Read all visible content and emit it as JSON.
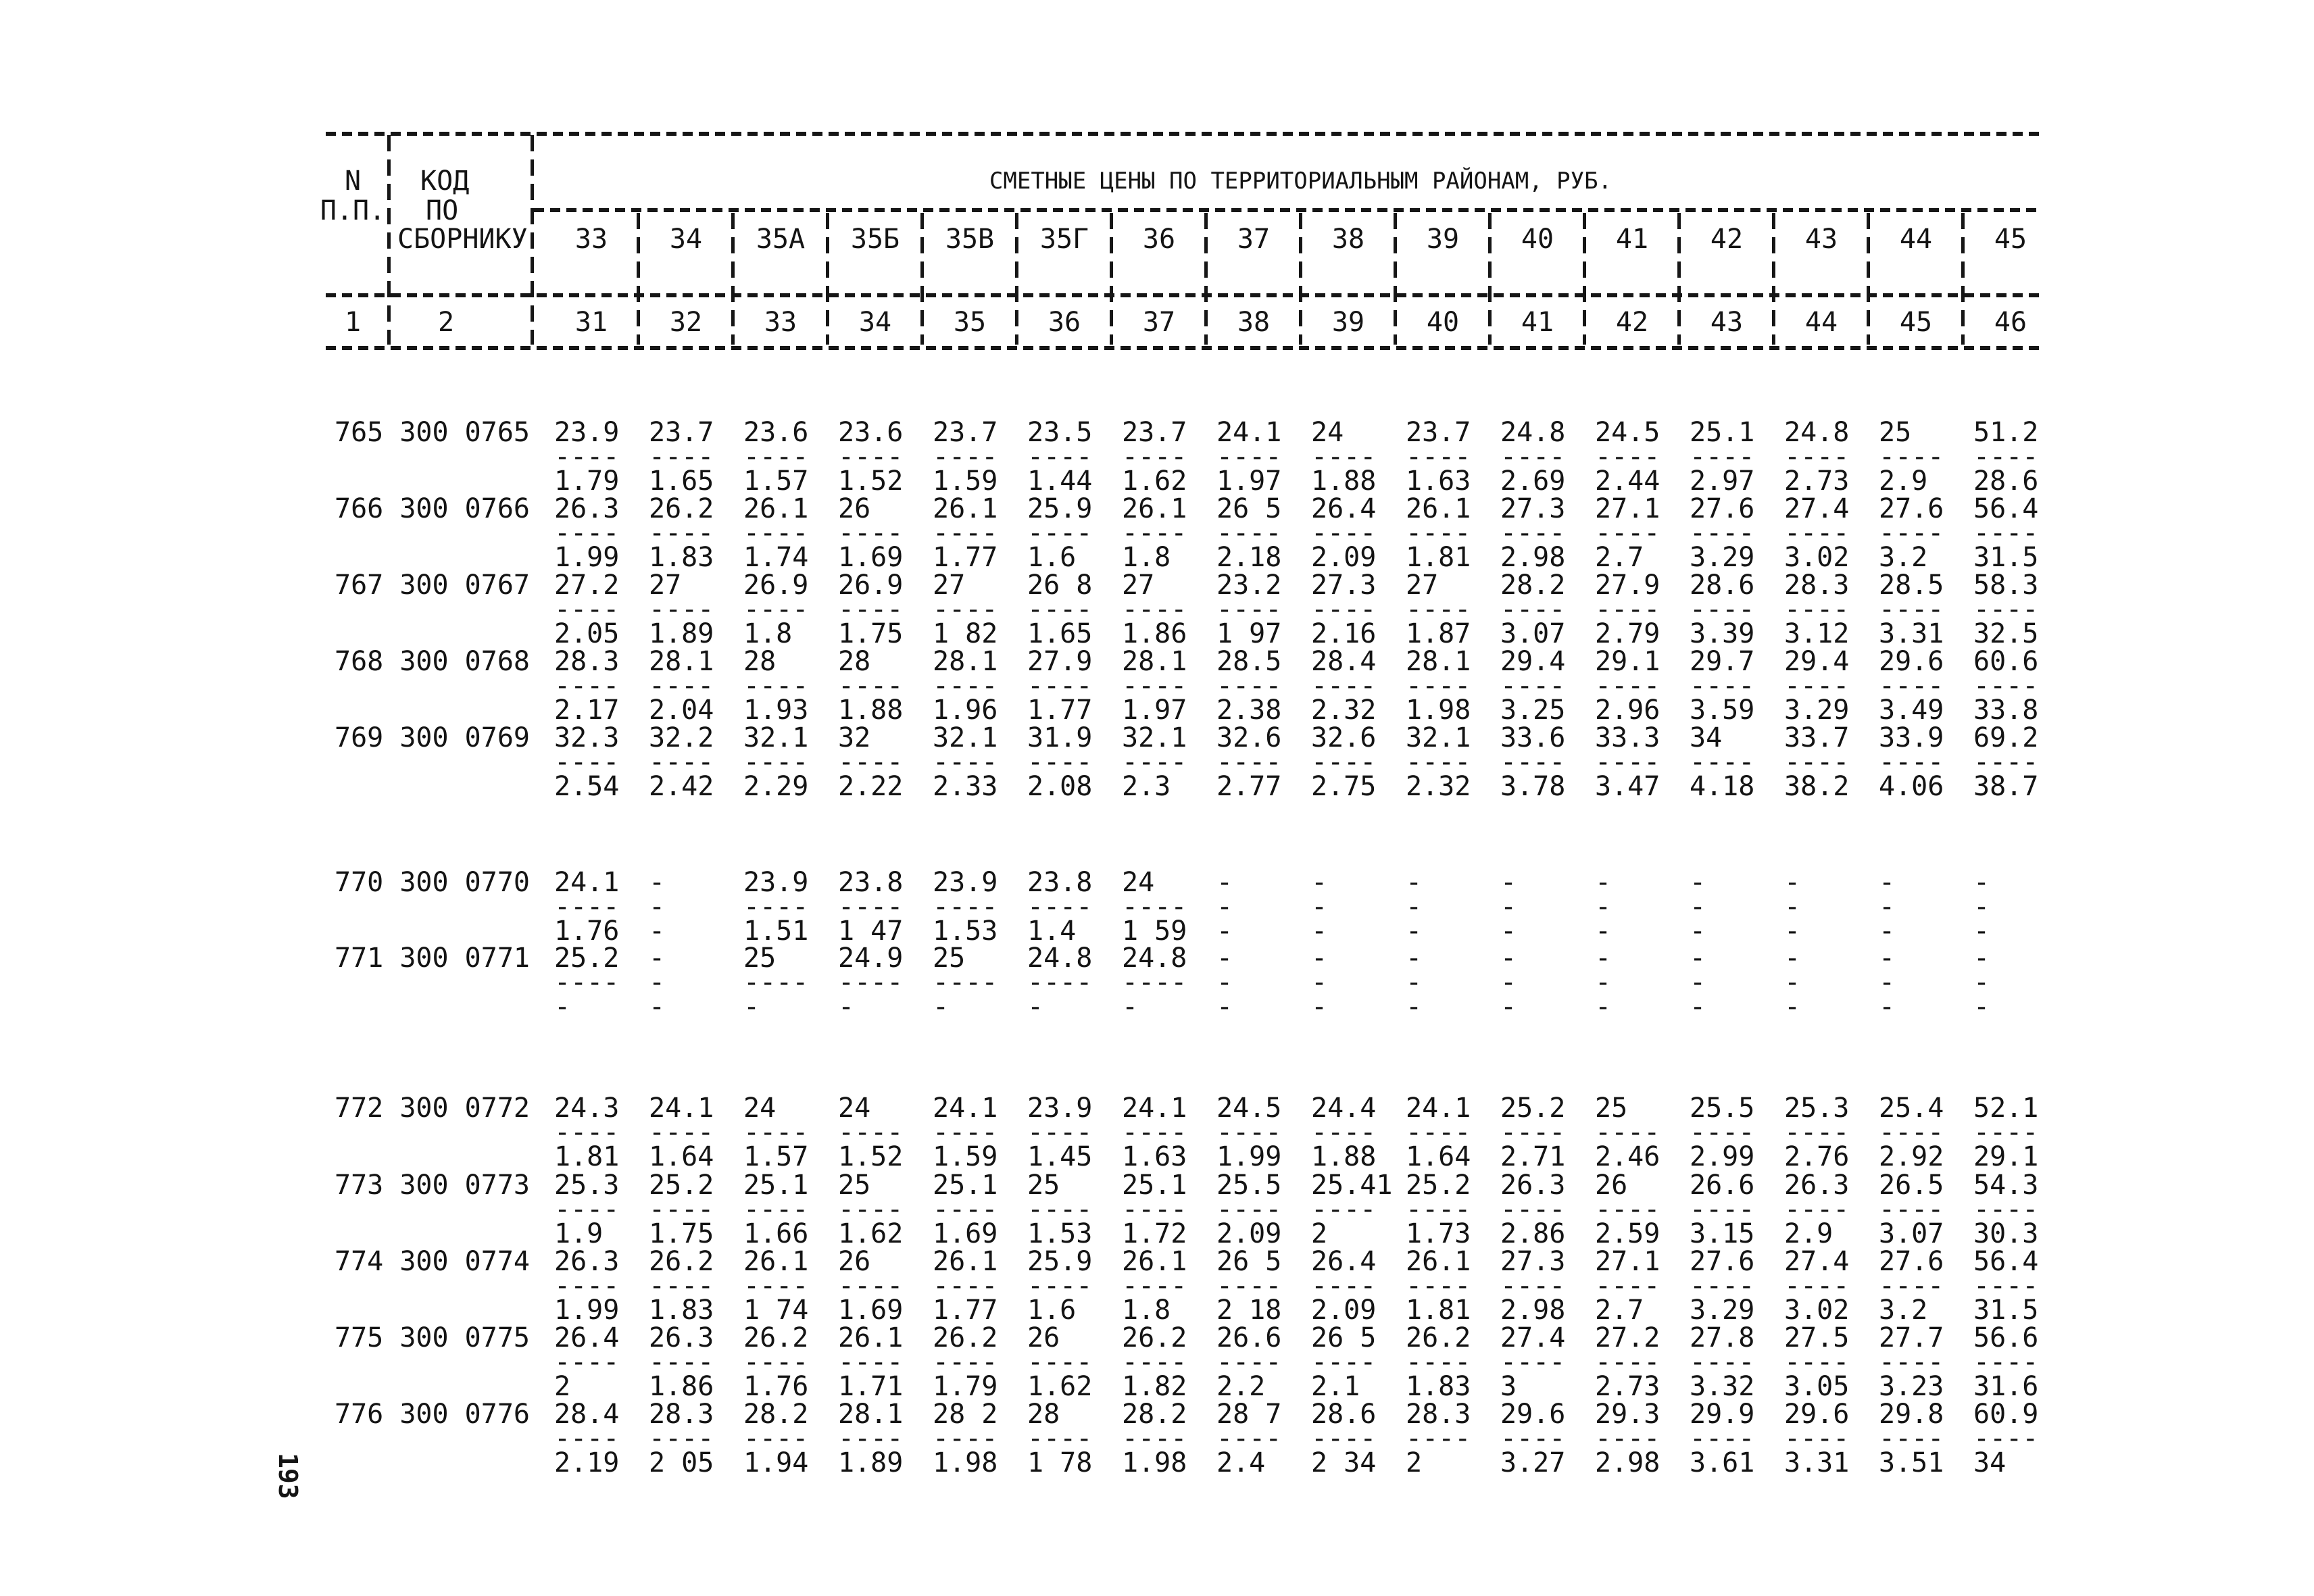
{
  "page_number": "193",
  "header": {
    "row_no_line1": "N",
    "row_no_line2": "П.П.",
    "code_line1": "КОД",
    "code_line2": "ПО",
    "code_line3": "СБОРНИКУ",
    "title": "СМЕТНЫЕ ЦЕНЫ ПО ТЕРРИТОРИАЛЬНЫМ РАЙОНАМ, РУБ.",
    "index_row_no": "1",
    "index_code": "2",
    "district_codes": [
      "33",
      "34",
      "35А",
      "35Б",
      "35В",
      "35Г",
      "36",
      "37",
      "38",
      "39",
      "40",
      "41",
      "42",
      "43",
      "44",
      "45"
    ],
    "column_numbers": [
      "31",
      "32",
      "33",
      "34",
      "35",
      "36",
      "37",
      "38",
      "39",
      "40",
      "41",
      "42",
      "43",
      "44",
      "45",
      "46"
    ]
  },
  "table": {
    "rows": [
      {
        "code": "765 300 0765",
        "num": [
          "23.9",
          "23.7",
          "23.6",
          "23.6",
          "23.7",
          "23.5",
          "23.7",
          "24.1",
          "24",
          "23.7",
          "24.8",
          "24.5",
          "25.1",
          "24.8",
          "25",
          "51.2"
        ],
        "den": [
          "1.79",
          "1.65",
          "1.57",
          "1.52",
          "1.59",
          "1.44",
          "1.62",
          "1.97",
          "1.88",
          "1.63",
          "2.69",
          "2.44",
          "2.97",
          "2.73",
          "2.9",
          "28.6"
        ]
      },
      {
        "code": "766 300 0766",
        "num": [
          "26.3",
          "26.2",
          "26.1",
          "26",
          "26.1",
          "25.9",
          "26.1",
          "26 5",
          "26.4",
          "26.1",
          "27.3",
          "27.1",
          "27.6",
          "27.4",
          "27.6",
          "56.4"
        ],
        "den": [
          "1.99",
          "1.83",
          "1.74",
          "1.69",
          "1.77",
          "1.6",
          "1.8",
          "2.18",
          "2.09",
          "1.81",
          "2.98",
          "2.7",
          "3.29",
          "3.02",
          "3.2",
          "31.5"
        ]
      },
      {
        "code": "767 300 0767",
        "num": [
          "27.2",
          "27",
          "26.9",
          "26.9",
          "27",
          "26 8",
          "27",
          "23.2",
          "27.3",
          "27",
          "28.2",
          "27.9",
          "28.6",
          "28.3",
          "28.5",
          "58.3"
        ],
        "den": [
          "2.05",
          "1.89",
          "1.8",
          "1.75",
          "1 82",
          "1.65",
          "1.86",
          "1 97",
          "2.16",
          "1.87",
          "3.07",
          "2.79",
          "3.39",
          "3.12",
          "3.31",
          "32.5"
        ]
      },
      {
        "code": "768 300 0768",
        "num": [
          "28.3",
          "28.1",
          "28",
          "28",
          "28.1",
          "27.9",
          "28.1",
          "28.5",
          "28.4",
          "28.1",
          "29.4",
          "29.1",
          "29.7",
          "29.4",
          "29.6",
          "60.6"
        ],
        "den": [
          "2.17",
          "2.04",
          "1.93",
          "1.88",
          "1.96",
          "1.77",
          "1.97",
          "2.38",
          "2.32",
          "1.98",
          "3.25",
          "2.96",
          "3.59",
          "3.29",
          "3.49",
          "33.8"
        ]
      },
      {
        "code": "769 300 0769",
        "num": [
          "32.3",
          "32.2",
          "32.1",
          "32",
          "32.1",
          "31.9",
          "32.1",
          "32.6",
          "32.6",
          "32.1",
          "33.6",
          "33.3",
          "34",
          "33.7",
          "33.9",
          "69.2"
        ],
        "den": [
          "2.54",
          "2.42",
          "2.29",
          "2.22",
          "2.33",
          "2.08",
          "2.3",
          "2.77",
          "2.75",
          "2.32",
          "3.78",
          "3.47",
          "4.18",
          "38.2",
          "4.06",
          "38.7"
        ]
      },
      {
        "code": "770 300 0770",
        "num": [
          "24.1",
          "-",
          "23.9",
          "23.8",
          "23.9",
          "23.8",
          "24",
          "-",
          "-",
          "-",
          "-",
          "-",
          "-",
          "-",
          "-",
          "-"
        ],
        "den": [
          "1.76",
          "-",
          "1.51",
          "1 47",
          "1.53",
          "1.4",
          "1 59",
          "-",
          "-",
          "-",
          "-",
          "-",
          "-",
          "-",
          "-",
          "-"
        ]
      },
      {
        "code": "771 300 0771",
        "num": [
          "25.2",
          "-",
          "25",
          "24.9",
          "25",
          "24.8",
          "24.8",
          "-",
          "-",
          "-",
          "-",
          "-",
          "-",
          "-",
          "-",
          "-"
        ],
        "den": [
          "-",
          "-",
          "-",
          "-",
          "-",
          "-",
          "-",
          "-",
          "-",
          "-",
          "-",
          "-",
          "-",
          "-",
          "-",
          "-"
        ]
      },
      {
        "code": "772 300 0772",
        "num": [
          "24.3",
          "24.1",
          "24",
          "24",
          "24.1",
          "23.9",
          "24.1",
          "24.5",
          "24.4",
          "24.1",
          "25.2",
          "25",
          "25.5",
          "25.3",
          "25.4",
          "52.1"
        ],
        "den": [
          "1.81",
          "1.64",
          "1.57",
          "1.52",
          "1.59",
          "1.45",
          "1.63",
          "1.99",
          "1.88",
          "1.64",
          "2.71",
          "2.46",
          "2.99",
          "2.76",
          "2.92",
          "29.1"
        ]
      },
      {
        "code": "773 300 0773",
        "num": [
          "25.3",
          "25.2",
          "25.1",
          "25",
          "25.1",
          "25",
          "25.1",
          "25.5",
          "25.41",
          "25.2",
          "26.3",
          "26",
          "26.6",
          "26.3",
          "26.5",
          "54.3"
        ],
        "den": [
          "1.9",
          "1.75",
          "1.66",
          "1.62",
          "1.69",
          "1.53",
          "1.72",
          "2.09",
          "2",
          "1.73",
          "2.86",
          "2.59",
          "3.15",
          "2.9",
          "3.07",
          "30.3"
        ]
      },
      {
        "code": "774 300 0774",
        "num": [
          "26.3",
          "26.2",
          "26.1",
          "26",
          "26.1",
          "25.9",
          "26.1",
          "26 5",
          "26.4",
          "26.1",
          "27.3",
          "27.1",
          "27.6",
          "27.4",
          "27.6",
          "56.4"
        ],
        "den": [
          "1.99",
          "1.83",
          "1 74",
          "1.69",
          "1.77",
          "1.6",
          "1.8",
          "2 18",
          "2.09",
          "1.81",
          "2.98",
          "2.7",
          "3.29",
          "3.02",
          "3.2",
          "31.5"
        ]
      },
      {
        "code": "775 300 0775",
        "num": [
          "26.4",
          "26.3",
          "26.2",
          "26.1",
          "26.2",
          "26",
          "26.2",
          "26.6",
          "26 5",
          "26.2",
          "27.4",
          "27.2",
          "27.8",
          "27.5",
          "27.7",
          "56.6"
        ],
        "den": [
          "2",
          "1.86",
          "1.76",
          "1.71",
          "1.79",
          "1.62",
          "1.82",
          "2.2",
          "2.1",
          "1.83",
          "3",
          "2.73",
          "3.32",
          "3.05",
          "3.23",
          "31.6"
        ]
      },
      {
        "code": "776 300 0776",
        "num": [
          "28.4",
          "28.3",
          "28.2",
          "28.1",
          "28 2",
          "28",
          "28.2",
          "28 7",
          "28.6",
          "28.3",
          "29.6",
          "29.3",
          "29.9",
          "29.6",
          "29.8",
          "60.9"
        ],
        "den": [
          "2.19",
          "2 05",
          "1.94",
          "1.89",
          "1.98",
          "1 78",
          "1.98",
          "2.4",
          "2 34",
          "2",
          "3.27",
          "2.98",
          "3.61",
          "3.31",
          "3.51",
          "34"
        ]
      }
    ]
  },
  "ink_color": "#141414"
}
